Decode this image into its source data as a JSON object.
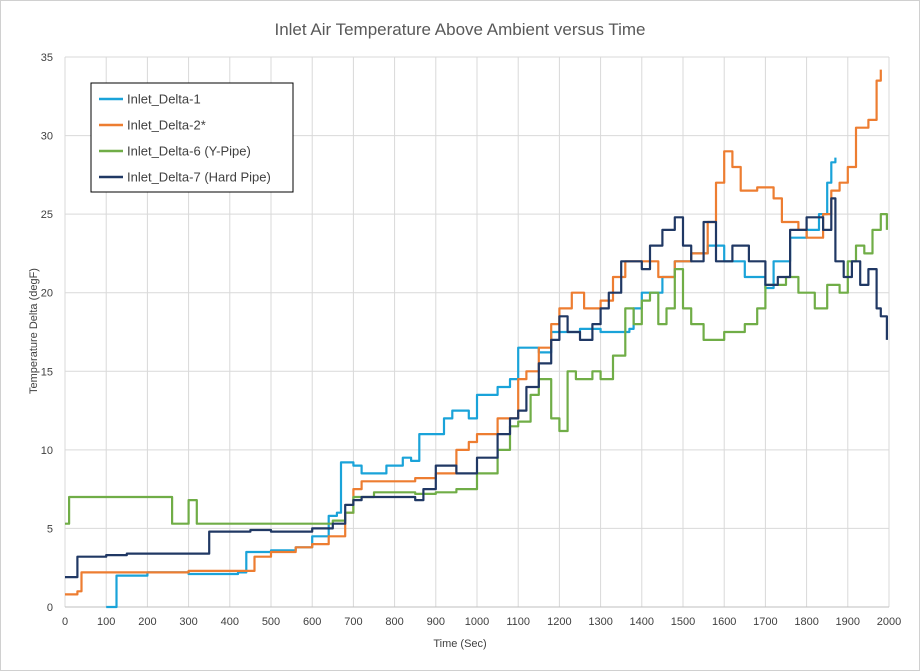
{
  "chart_data": {
    "type": "line",
    "title": "Inlet Air Temperature Above Ambient versus Time",
    "xlabel": "Time (Sec)",
    "ylabel": "Temperature Delta (degF)",
    "xlim": [
      0,
      2000
    ],
    "ylim": [
      0,
      35
    ],
    "xticks": [
      0,
      100,
      200,
      300,
      400,
      500,
      600,
      700,
      800,
      900,
      1000,
      1100,
      1200,
      1300,
      1400,
      1500,
      1600,
      1700,
      1800,
      1900,
      2000
    ],
    "yticks": [
      0,
      5,
      10,
      15,
      20,
      25,
      30,
      35
    ],
    "grid": true,
    "legend_position": "top-left",
    "series": [
      {
        "name": "Inlet_Delta-1",
        "color": "#1aa3d9",
        "points": [
          [
            100,
            0
          ],
          [
            120,
            0
          ],
          [
            125,
            2
          ],
          [
            200,
            2.2
          ],
          [
            300,
            2.1
          ],
          [
            420,
            2.2
          ],
          [
            440,
            3.5
          ],
          [
            500,
            3.6
          ],
          [
            560,
            3.8
          ],
          [
            600,
            4.5
          ],
          [
            640,
            5.8
          ],
          [
            660,
            6
          ],
          [
            670,
            9.2
          ],
          [
            700,
            9
          ],
          [
            720,
            8.5
          ],
          [
            780,
            9
          ],
          [
            820,
            9.5
          ],
          [
            840,
            9.3
          ],
          [
            860,
            11
          ],
          [
            900,
            11
          ],
          [
            920,
            12
          ],
          [
            940,
            12.5
          ],
          [
            980,
            12
          ],
          [
            1000,
            13.5
          ],
          [
            1050,
            14
          ],
          [
            1080,
            14.5
          ],
          [
            1100,
            16.5
          ],
          [
            1150,
            16.2
          ],
          [
            1180,
            17.5
          ],
          [
            1250,
            17.7
          ],
          [
            1300,
            17.5
          ],
          [
            1370,
            17.7
          ],
          [
            1380,
            19
          ],
          [
            1400,
            20
          ],
          [
            1450,
            21
          ],
          [
            1480,
            22
          ],
          [
            1520,
            22.5
          ],
          [
            1560,
            23
          ],
          [
            1600,
            22
          ],
          [
            1650,
            21
          ],
          [
            1700,
            20.3
          ],
          [
            1720,
            22
          ],
          [
            1760,
            23.5
          ],
          [
            1800,
            24
          ],
          [
            1830,
            25
          ],
          [
            1850,
            27
          ],
          [
            1860,
            28.3
          ],
          [
            1870,
            28.6
          ]
        ]
      },
      {
        "name": "Inlet_Delta-2*",
        "color": "#ed7d31",
        "points": [
          [
            0,
            0.8
          ],
          [
            30,
            1
          ],
          [
            40,
            2.2
          ],
          [
            200,
            2.2
          ],
          [
            300,
            2.3
          ],
          [
            440,
            2.3
          ],
          [
            460,
            3.2
          ],
          [
            500,
            3.5
          ],
          [
            560,
            3.8
          ],
          [
            600,
            4
          ],
          [
            640,
            4.5
          ],
          [
            680,
            6
          ],
          [
            700,
            7.5
          ],
          [
            720,
            8
          ],
          [
            800,
            8
          ],
          [
            850,
            8.2
          ],
          [
            900,
            8.5
          ],
          [
            950,
            10
          ],
          [
            980,
            10.5
          ],
          [
            1000,
            11
          ],
          [
            1050,
            12
          ],
          [
            1100,
            14.5
          ],
          [
            1120,
            15
          ],
          [
            1150,
            16.5
          ],
          [
            1180,
            18
          ],
          [
            1200,
            19
          ],
          [
            1230,
            20
          ],
          [
            1260,
            19
          ],
          [
            1300,
            19.5
          ],
          [
            1330,
            21
          ],
          [
            1360,
            22
          ],
          [
            1400,
            22
          ],
          [
            1440,
            21
          ],
          [
            1480,
            22
          ],
          [
            1520,
            22.5
          ],
          [
            1560,
            24.5
          ],
          [
            1580,
            27
          ],
          [
            1600,
            29
          ],
          [
            1620,
            28
          ],
          [
            1640,
            26.5
          ],
          [
            1680,
            26.7
          ],
          [
            1720,
            26
          ],
          [
            1740,
            24.5
          ],
          [
            1780,
            24
          ],
          [
            1800,
            23.5
          ],
          [
            1840,
            25
          ],
          [
            1860,
            26.5
          ],
          [
            1880,
            27
          ],
          [
            1900,
            28
          ],
          [
            1920,
            30.5
          ],
          [
            1950,
            31
          ],
          [
            1970,
            33.5
          ],
          [
            1980,
            34.2
          ]
        ]
      },
      {
        "name": "Inlet_Delta-6 (Y-Pipe)",
        "color": "#70ad47",
        "points": [
          [
            0,
            5.3
          ],
          [
            10,
            7
          ],
          [
            100,
            7
          ],
          [
            200,
            7
          ],
          [
            250,
            7
          ],
          [
            260,
            5.3
          ],
          [
            300,
            6.8
          ],
          [
            320,
            5.3
          ],
          [
            400,
            5.3
          ],
          [
            500,
            5.3
          ],
          [
            600,
            5.3
          ],
          [
            650,
            5.5
          ],
          [
            680,
            6
          ],
          [
            700,
            7
          ],
          [
            750,
            7.3
          ],
          [
            800,
            7.3
          ],
          [
            850,
            7.2
          ],
          [
            900,
            7.3
          ],
          [
            950,
            7.5
          ],
          [
            1000,
            8.5
          ],
          [
            1050,
            10
          ],
          [
            1080,
            11.5
          ],
          [
            1100,
            11.8
          ],
          [
            1130,
            13.5
          ],
          [
            1150,
            14.5
          ],
          [
            1180,
            12
          ],
          [
            1200,
            11.2
          ],
          [
            1220,
            15
          ],
          [
            1240,
            14.5
          ],
          [
            1280,
            15
          ],
          [
            1300,
            14.5
          ],
          [
            1330,
            16
          ],
          [
            1360,
            19
          ],
          [
            1380,
            18
          ],
          [
            1400,
            19.5
          ],
          [
            1420,
            20
          ],
          [
            1440,
            18
          ],
          [
            1460,
            19
          ],
          [
            1480,
            21.5
          ],
          [
            1500,
            19
          ],
          [
            1520,
            18
          ],
          [
            1550,
            17
          ],
          [
            1600,
            17.5
          ],
          [
            1650,
            18
          ],
          [
            1680,
            19
          ],
          [
            1700,
            20.5
          ],
          [
            1750,
            21
          ],
          [
            1780,
            20
          ],
          [
            1820,
            19
          ],
          [
            1850,
            20.5
          ],
          [
            1880,
            20
          ],
          [
            1900,
            22
          ],
          [
            1920,
            23
          ],
          [
            1940,
            22.5
          ],
          [
            1960,
            24
          ],
          [
            1980,
            25
          ],
          [
            1995,
            24
          ]
        ]
      },
      {
        "name": "Inlet_Delta-7 (Hard Pipe)",
        "color": "#203864",
        "points": [
          [
            0,
            1.9
          ],
          [
            25,
            1.9
          ],
          [
            30,
            3.2
          ],
          [
            100,
            3.3
          ],
          [
            150,
            3.4
          ],
          [
            200,
            3.4
          ],
          [
            300,
            3.4
          ],
          [
            340,
            3.4
          ],
          [
            350,
            4.8
          ],
          [
            400,
            4.8
          ],
          [
            450,
            4.9
          ],
          [
            500,
            4.8
          ],
          [
            560,
            4.8
          ],
          [
            600,
            5
          ],
          [
            650,
            5.3
          ],
          [
            680,
            6.5
          ],
          [
            700,
            6.8
          ],
          [
            720,
            7
          ],
          [
            800,
            7
          ],
          [
            850,
            6.8
          ],
          [
            870,
            7.5
          ],
          [
            900,
            9
          ],
          [
            950,
            8.5
          ],
          [
            1000,
            9.5
          ],
          [
            1050,
            11
          ],
          [
            1080,
            12
          ],
          [
            1100,
            12.5
          ],
          [
            1120,
            14
          ],
          [
            1150,
            15.5
          ],
          [
            1180,
            17
          ],
          [
            1200,
            18.5
          ],
          [
            1220,
            17.5
          ],
          [
            1250,
            17
          ],
          [
            1280,
            18
          ],
          [
            1300,
            19
          ],
          [
            1320,
            20
          ],
          [
            1350,
            22
          ],
          [
            1400,
            21.5
          ],
          [
            1420,
            23
          ],
          [
            1450,
            24
          ],
          [
            1480,
            24.8
          ],
          [
            1500,
            23
          ],
          [
            1520,
            22
          ],
          [
            1550,
            24.5
          ],
          [
            1580,
            22
          ],
          [
            1620,
            23
          ],
          [
            1660,
            22
          ],
          [
            1700,
            20.5
          ],
          [
            1730,
            21
          ],
          [
            1760,
            24
          ],
          [
            1800,
            24.8
          ],
          [
            1840,
            24
          ],
          [
            1860,
            26
          ],
          [
            1870,
            22
          ],
          [
            1890,
            21
          ],
          [
            1910,
            22
          ],
          [
            1930,
            20.5
          ],
          [
            1950,
            21.5
          ],
          [
            1970,
            19
          ],
          [
            1980,
            18.5
          ],
          [
            1995,
            17
          ]
        ]
      }
    ]
  }
}
